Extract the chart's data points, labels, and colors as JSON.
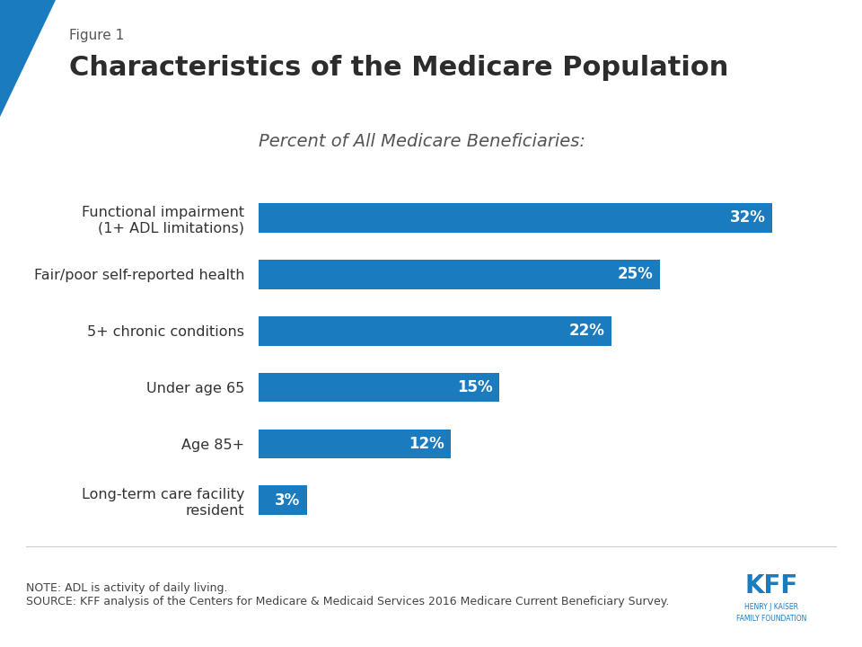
{
  "figure_label": "Figure 1",
  "title": "Characteristics of the Medicare Population",
  "subtitle": "Percent of All Medicare Beneficiaries:",
  "categories": [
    "Long-term care facility\nresident",
    "Age 85+",
    "Under age 65",
    "5+ chronic conditions",
    "Fair/poor self-reported health",
    "Functional impairment\n(1+ ADL limitations)"
  ],
  "values": [
    3,
    12,
    15,
    22,
    25,
    32
  ],
  "bar_color": "#1a7bbf",
  "label_color": "#ffffff",
  "title_color": "#333333",
  "note_text": "NOTE: ADL is activity of daily living.\nSOURCE: KFF analysis of the Centers for Medicare & Medicaid Services 2016 Medicare Current Beneficiary Survey.",
  "background_color": "#ffffff",
  "xlim": [
    0,
    36
  ],
  "bar_height": 0.52,
  "title_fontsize": 22,
  "figure_label_fontsize": 11,
  "subtitle_fontsize": 14,
  "category_fontsize": 11.5,
  "value_fontsize": 12,
  "note_fontsize": 9,
  "kff_color": "#1a7bbf",
  "accent_blue": "#1a7bbf"
}
